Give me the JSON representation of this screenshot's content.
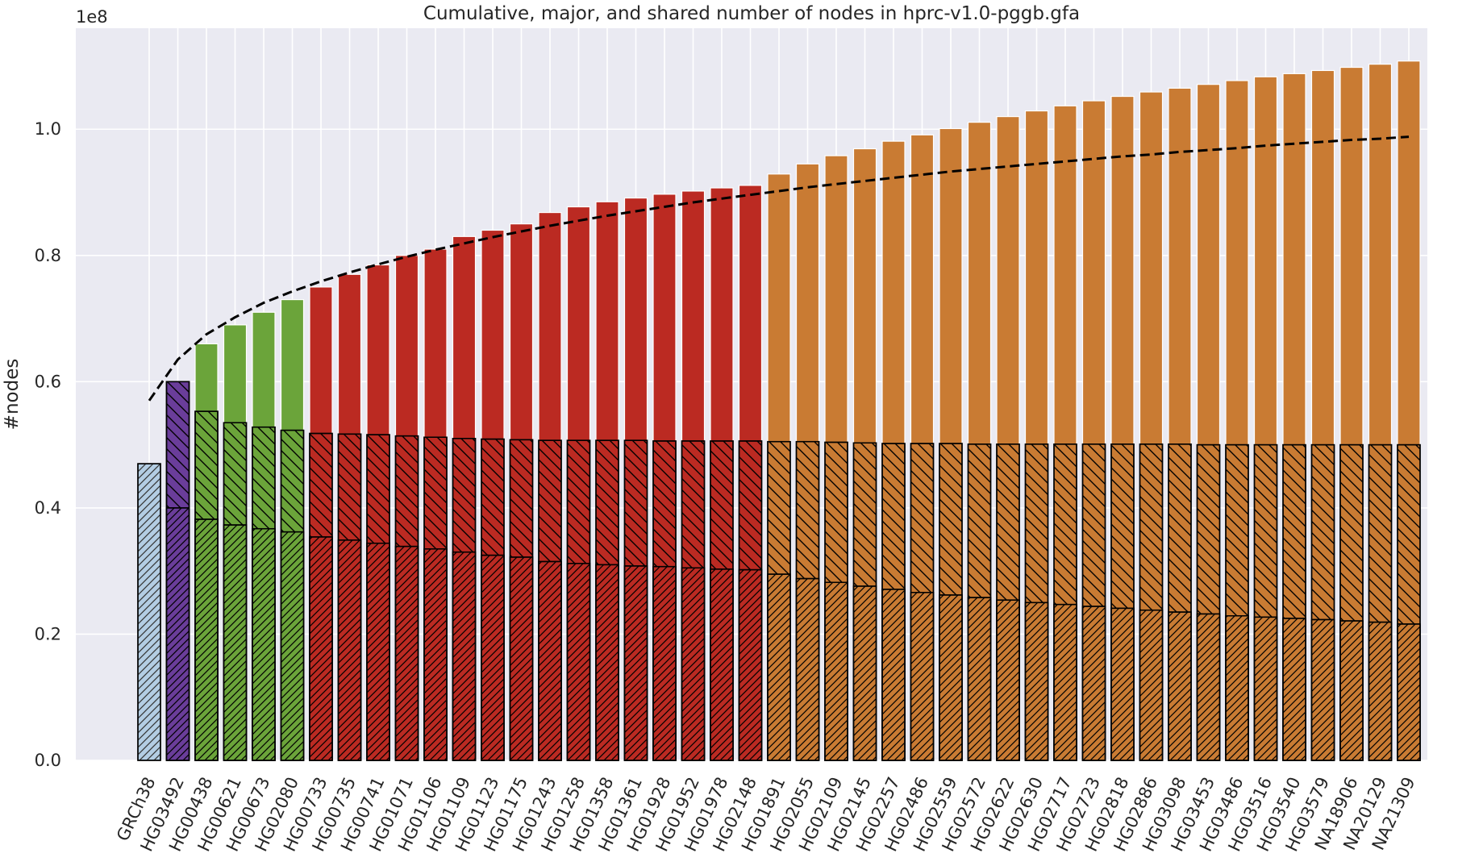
{
  "chart_data": {
    "type": "bar",
    "title": "Cumulative, major, and shared number of nodes in hprc-v1.0-pggb.gfa",
    "ylabel": "#nodes",
    "xlabel": "",
    "y_scale_label": "1e8",
    "y_scale": 100000000,
    "ylim": [
      0,
      1.16
    ],
    "yticks": [
      0.0,
      0.2,
      0.4,
      0.6,
      0.8,
      1.0
    ],
    "ytick_labels": [
      "0.0",
      "0.2",
      "0.4",
      "0.6",
      "0.8",
      "1.0"
    ],
    "grid": true,
    "categories": [
      "GRCh38",
      "HG03492",
      "HG00438",
      "HG00621",
      "HG00673",
      "HG02080",
      "HG00733",
      "HG00735",
      "HG00741",
      "HG01071",
      "HG01106",
      "HG01109",
      "HG01123",
      "HG01175",
      "HG01243",
      "HG01258",
      "HG01358",
      "HG01361",
      "HG01928",
      "HG01952",
      "HG01978",
      "HG02148",
      "HG01891",
      "HG02055",
      "HG02109",
      "HG02145",
      "HG02257",
      "HG02486",
      "HG02559",
      "HG02572",
      "HG02622",
      "HG02630",
      "HG02717",
      "HG02723",
      "HG02818",
      "HG02886",
      "HG03098",
      "HG03453",
      "HG03486",
      "HG03516",
      "HG03540",
      "HG03579",
      "NA18906",
      "NA20129",
      "NA21309"
    ],
    "groups": [
      0,
      1,
      2,
      2,
      2,
      2,
      3,
      3,
      3,
      3,
      3,
      3,
      3,
      3,
      3,
      3,
      3,
      3,
      3,
      3,
      3,
      3,
      4,
      4,
      4,
      4,
      4,
      4,
      4,
      4,
      4,
      4,
      4,
      4,
      4,
      4,
      4,
      4,
      4,
      4,
      4,
      4,
      4,
      4,
      4
    ],
    "group_colors": [
      "#b3cde3",
      "#6a3d9a",
      "#6ba43a",
      "#bb2a22",
      "#c97b33"
    ],
    "series": [
      {
        "values": [
          0.47,
          0.6,
          0.66,
          0.69,
          0.71,
          0.73,
          0.75,
          0.77,
          0.785,
          0.8,
          0.81,
          0.83,
          0.84,
          0.85,
          0.868,
          0.877,
          0.885,
          0.891,
          0.897,
          0.902,
          0.907,
          0.911,
          0.929,
          0.945,
          0.958,
          0.969,
          0.981,
          0.991,
          1.001,
          1.011,
          1.02,
          1.029,
          1.037,
          1.045,
          1.052,
          1.059,
          1.065,
          1.071,
          1.077,
          1.083,
          1.088,
          1.093,
          1.098,
          1.103,
          1.108
        ]
      },
      {
        "values": [
          null,
          0.6,
          0.553,
          0.535,
          0.528,
          0.523,
          0.518,
          0.517,
          0.516,
          0.514,
          0.512,
          0.51,
          0.509,
          0.508,
          0.507,
          0.507,
          0.507,
          0.507,
          0.506,
          0.506,
          0.506,
          0.506,
          0.505,
          0.505,
          0.504,
          0.503,
          0.502,
          0.502,
          0.502,
          0.501,
          0.501,
          0.501,
          0.501,
          0.501,
          0.501,
          0.501,
          0.501,
          0.5,
          0.5,
          0.5,
          0.5,
          0.5,
          0.5,
          0.5,
          0.5
        ]
      },
      {
        "values": [
          0.47,
          0.4,
          0.382,
          0.373,
          0.367,
          0.362,
          0.354,
          0.349,
          0.344,
          0.339,
          0.335,
          0.33,
          0.325,
          0.322,
          0.315,
          0.312,
          0.31,
          0.308,
          0.307,
          0.305,
          0.303,
          0.302,
          0.295,
          0.288,
          0.282,
          0.276,
          0.271,
          0.266,
          0.262,
          0.258,
          0.254,
          0.25,
          0.247,
          0.244,
          0.241,
          0.238,
          0.235,
          0.232,
          0.229,
          0.227,
          0.225,
          0.223,
          0.221,
          0.219,
          0.216
        ]
      }
    ],
    "curve": {
      "style": "dashed",
      "values": [
        0.57,
        0.635,
        0.675,
        0.702,
        0.725,
        0.743,
        0.759,
        0.773,
        0.786,
        0.798,
        0.809,
        0.819,
        0.829,
        0.838,
        0.847,
        0.855,
        0.863,
        0.87,
        0.877,
        0.884,
        0.89,
        0.896,
        0.902,
        0.908,
        0.913,
        0.918,
        0.923,
        0.928,
        0.933,
        0.937,
        0.941,
        0.945,
        0.949,
        0.953,
        0.957,
        0.96,
        0.964,
        0.967,
        0.97,
        0.974,
        0.977,
        0.98,
        0.983,
        0.985,
        0.988
      ]
    }
  }
}
